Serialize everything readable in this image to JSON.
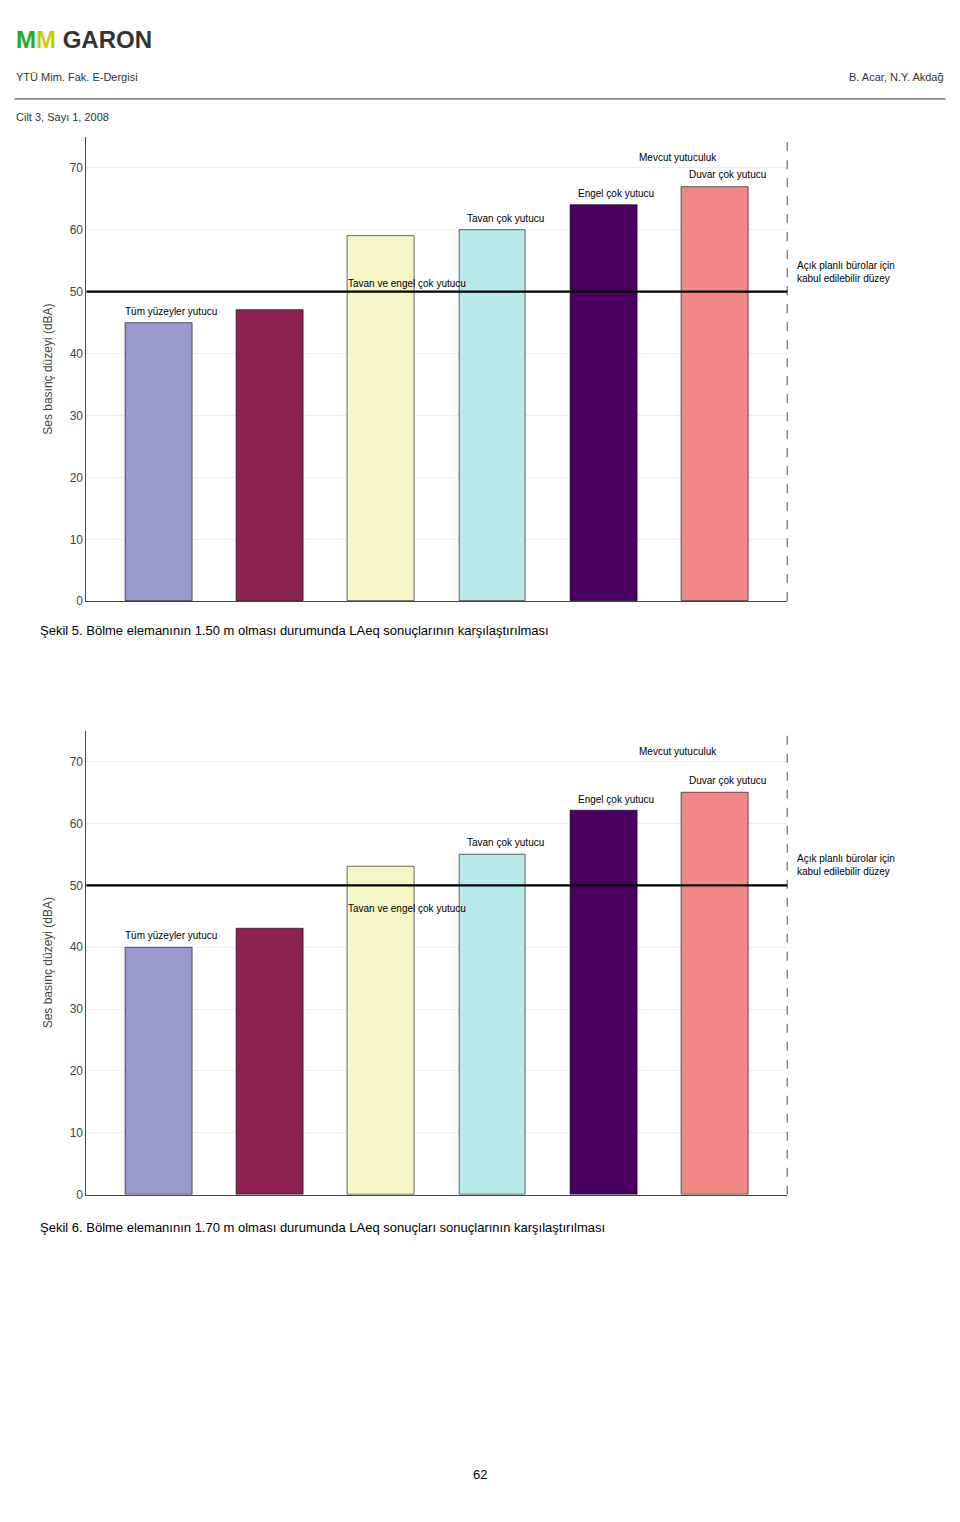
{
  "header": {
    "logo": [
      {
        "text": "M",
        "color": "#22aa22"
      },
      {
        "text": "M",
        "color": "#cccc00"
      },
      {
        "text": "GARON",
        "color": "#333333"
      }
    ],
    "line1": "YTÜ Mim. Fak. E-Dergisi",
    "line2": "Cilt 3, Sayı 1, 2008",
    "right": "B. Acar, N.Y. Akdağ"
  },
  "page_number": "62",
  "chart_data": [
    {
      "type": "bar",
      "title": "Şekil 5. Bölme elemanının 1.50 m olması durumunda LAeq sonuçlarının karşılaştırılması",
      "categories": [
        null,
        null,
        null,
        null,
        null,
        null
      ],
      "values": [
        45,
        47,
        59,
        60,
        64,
        67
      ],
      "colors": [
        "#9999cc",
        "#8b2252",
        "#f5f5c8",
        "#b8e8e8",
        "#4a0060",
        "#f08888"
      ],
      "ylabel": "Ses basınç düzeyi (dBA)",
      "ylim": [
        0,
        75
      ],
      "yticks": [
        0,
        10,
        20,
        30,
        40,
        50,
        60,
        70
      ],
      "grid": true,
      "tick_labels": "y",
      "annotations": [
        {
          "text": "Tüm yüzeyler yutucu",
          "bar": 0
        },
        {
          "text": "Tavan ve engel çok yutucu",
          "bar": 2,
          "inside": true
        },
        {
          "text": "Tavan çok yutucu",
          "bar": 3
        },
        {
          "text": "Engel çok yutucu",
          "bar": 4
        },
        {
          "text": "Duvar çok yutucu",
          "bar": 5
        },
        {
          "text": "Mevcut yutuculuk",
          "bar": 4,
          "y": 70
        },
        {
          "text": "Açık planlı bürolar için\nkabul edilebilir düzey",
          "y": 50,
          "line": true
        }
      ]
    },
    {
      "type": "bar",
      "title": "Şekil 6. Bölme elemanının 1.70 m olması durumunda LAeq sonuçları sonuçlarının karşılaştırılması",
      "categories": [
        null,
        null,
        null,
        null,
        null,
        null
      ],
      "values": [
        40,
        43,
        53,
        55,
        62,
        65
      ],
      "colors": [
        "#9999cc",
        "#8b2252",
        "#f5f5c8",
        "#b8e8e8",
        "#4a0060",
        "#f08888"
      ],
      "ylabel": "Ses basınç düzeyi (dBA)",
      "ylim": [
        0,
        75
      ],
      "yticks": [
        0,
        10,
        20,
        30,
        40,
        50,
        60,
        70
      ],
      "grid": true,
      "tick_labels": "y",
      "annotations": [
        {
          "text": "Tüm yüzeyler yutucu",
          "bar": 0
        },
        {
          "text": "Tavan ve engel çok yutucu",
          "bar": 2,
          "inside": true
        },
        {
          "text": "Tavan çok yutucu",
          "bar": 3
        },
        {
          "text": "Engel çok yutucu",
          "bar": 4
        },
        {
          "text": "Duvar çok yutucu",
          "bar": 5
        },
        {
          "text": "Mevcut yutuculuk",
          "bar": 4,
          "y": 70
        },
        {
          "text": "Açık planlı bürolar için\nkabul edilebilir düzey",
          "y": 50,
          "line": true
        }
      ]
    }
  ]
}
